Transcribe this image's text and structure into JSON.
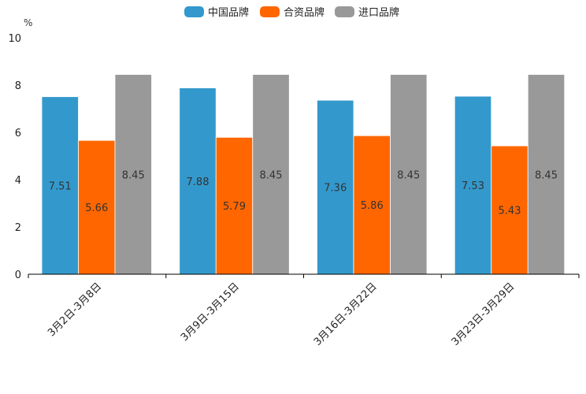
{
  "chart_data": {
    "type": "bar",
    "title": "",
    "xlabel": "",
    "ylabel": "%",
    "ylim": [
      0,
      10
    ],
    "yticks": [
      0,
      2,
      4,
      6,
      8,
      10
    ],
    "grid": false,
    "legend_position": "top-center",
    "categories": [
      "3月2日-3月8日",
      "3月9日-3月15日",
      "3月16日-3月22日",
      "3月23日-3月29日"
    ],
    "series": [
      {
        "name": "中国品牌",
        "color": "#3399cc",
        "values": [
          7.51,
          7.88,
          7.36,
          7.53
        ]
      },
      {
        "name": "合资品牌",
        "color": "#ff6600",
        "values": [
          5.66,
          5.79,
          5.86,
          5.43
        ]
      },
      {
        "name": "进口品牌",
        "color": "#999999",
        "values": [
          8.45,
          8.45,
          8.45,
          8.45
        ]
      }
    ]
  }
}
